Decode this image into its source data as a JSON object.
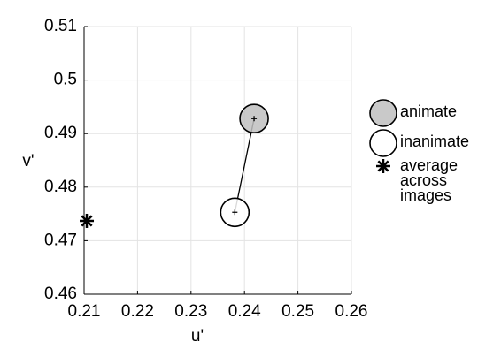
{
  "chart_data": {
    "type": "scatter",
    "xlabel": "u'",
    "ylabel": "v'",
    "xlim": [
      0.21,
      0.26
    ],
    "xticks": [
      0.21,
      0.22,
      0.23,
      0.24,
      0.25,
      0.26
    ],
    "ylim": [
      0.46,
      0.51
    ],
    "yticks": [
      0.46,
      0.47,
      0.48,
      0.49,
      0.5,
      0.51
    ],
    "grid": true,
    "legend": "right",
    "series": [
      {
        "name": "animate",
        "color": "#c0c0c0",
        "marker": "circle",
        "x": [
          0.2418
        ],
        "values": [
          0.4928
        ]
      },
      {
        "name": "inanimate",
        "color": "#ffffff",
        "marker": "circle",
        "x": [
          0.2382
        ],
        "values": [
          0.4753
        ]
      },
      {
        "name": "average across images",
        "color": "#000000",
        "marker": "asterisk",
        "x": [
          0.2105
        ],
        "values": [
          0.4737
        ]
      }
    ]
  }
}
